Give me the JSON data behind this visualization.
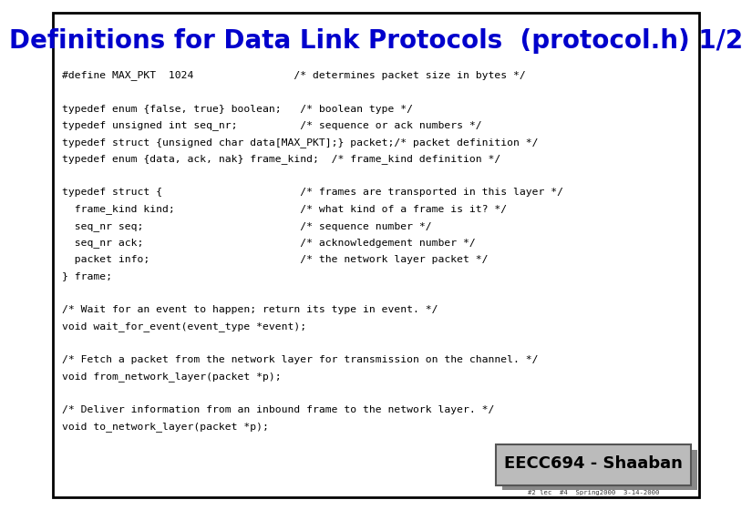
{
  "title": "Definitions for Data Link Protocols  (protocol.h) 1/2",
  "title_color": "#0000CC",
  "title_fontsize": 20,
  "bg_color": "#FFFFFF",
  "border_color": "#000000",
  "code_color": "#000000",
  "code_fontsize": 8.2,
  "mono_font": "monospace",
  "footer_text": "EECC694 - Shaaban",
  "footer_sub": "#2 lec  #4  Spring2000  3-14-2000",
  "lines": [
    "#define MAX_PKT  1024                /* determines packet size in bytes */",
    "",
    "typedef enum {false, true} boolean;   /* boolean type */",
    "typedef unsigned int seq_nr;          /* sequence or ack numbers */",
    "typedef struct {unsigned char data[MAX_PKT];} packet;/* packet definition */",
    "typedef enum {data, ack, nak} frame_kind;  /* frame_kind definition */",
    "",
    "typedef struct {                      /* frames are transported in this layer */",
    "  frame_kind kind;                    /* what kind of a frame is it? */",
    "  seq_nr seq;                         /* sequence number */",
    "  seq_nr ack;                         /* acknowledgement number */",
    "  packet info;                        /* the network layer packet */",
    "} frame;",
    "",
    "/* Wait for an event to happen; return its type in event. */",
    "void wait_for_event(event_type *event);",
    "",
    "/* Fetch a packet from the network layer for transmission on the channel. */",
    "void from_network_layer(packet *p);",
    "",
    "/* Deliver information from an inbound frame to the network layer. */",
    "void to_network_layer(packet *p);"
  ]
}
